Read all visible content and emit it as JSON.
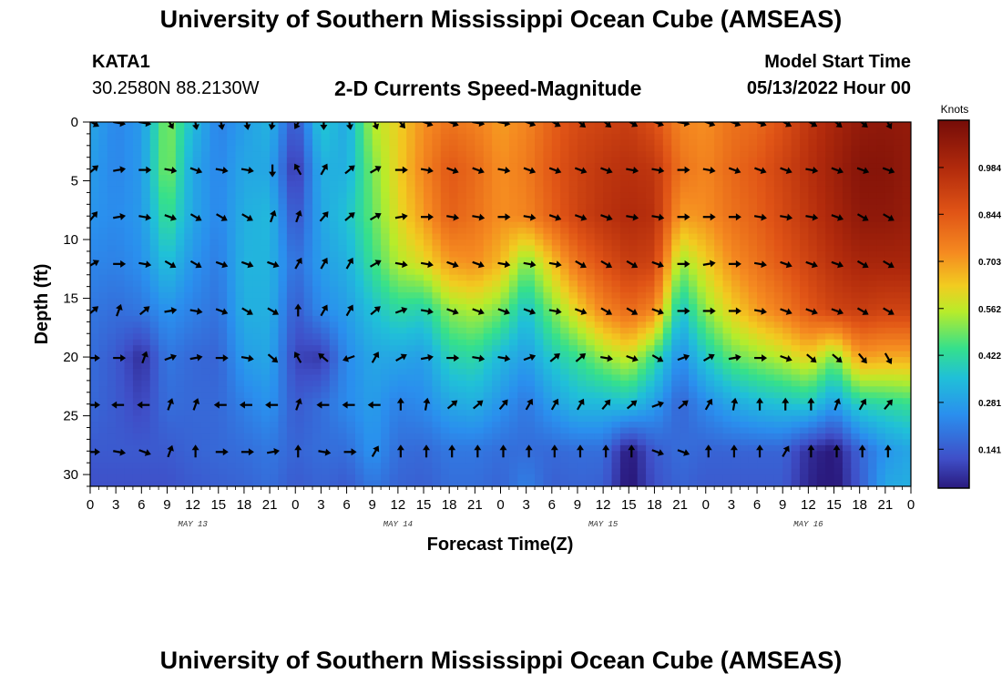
{
  "page": {
    "title_top": "University of Southern Mississippi Ocean Cube (AMSEAS)",
    "title_bottom": "University of Southern Mississippi Ocean Cube (AMSEAS)",
    "station_id": "KATA1",
    "station_coords": "30.2580N  88.2130W",
    "plot_title": "2-D Currents Speed-Magnitude",
    "model_start_label": "Model Start Time",
    "model_start_value": "05/13/2022 Hour 00"
  },
  "chart_data": {
    "type": "heatmap",
    "title": "2-D Currents Speed-Magnitude",
    "xlabel": "Forecast Time(Z)",
    "ylabel": "Depth (ft)",
    "x_tick_labels": [
      "0",
      "3",
      "6",
      "9",
      "12",
      "15",
      "18",
      "21",
      "0",
      "3",
      "6",
      "9",
      "12",
      "15",
      "18",
      "21",
      "0",
      "3",
      "6",
      "9",
      "12",
      "15",
      "18",
      "21",
      "0",
      "3",
      "6",
      "9",
      "12",
      "15",
      "18",
      "21",
      "0"
    ],
    "x_range_hours": [
      0,
      96
    ],
    "date_labels": [
      {
        "text": "MAY 13",
        "hour": 12
      },
      {
        "text": "MAY 14",
        "hour": 36
      },
      {
        "text": "MAY 15",
        "hour": 60
      },
      {
        "text": "MAY 16",
        "hour": 84
      }
    ],
    "y_ticks": [
      0,
      5,
      10,
      15,
      20,
      25,
      30
    ],
    "y_range_ft": [
      0,
      31
    ],
    "colorbar": {
      "unit": "Knots",
      "range": [
        0.03,
        1.12
      ],
      "labels": [
        "0.984",
        "0.844",
        "0.703",
        "0.562",
        "0.422",
        "0.281",
        "0.141"
      ],
      "label_values": [
        0.984,
        0.844,
        0.703,
        0.562,
        0.422,
        0.281,
        0.141
      ]
    },
    "depth_rows_ft": [
      0,
      4,
      8,
      12,
      16,
      20,
      24,
      28,
      31
    ],
    "hours": [
      0,
      3,
      6,
      9,
      12,
      15,
      18,
      21,
      24,
      27,
      30,
      33,
      36,
      39,
      42,
      45,
      48,
      51,
      54,
      57,
      60,
      63,
      66,
      69,
      72,
      75,
      78,
      81,
      84,
      87,
      90,
      93,
      96
    ],
    "speed_knots_grid": [
      [
        0.3,
        0.23,
        0.27,
        0.52,
        0.35,
        0.22,
        0.28,
        0.33,
        0.12,
        0.38,
        0.3,
        0.55,
        0.62,
        0.72,
        0.78,
        0.75,
        0.7,
        0.74,
        0.82,
        0.88,
        0.9,
        0.92,
        0.86,
        0.74,
        0.72,
        0.78,
        0.8,
        0.86,
        0.94,
        1.0,
        1.05,
        1.06,
        1.05
      ],
      [
        0.28,
        0.23,
        0.27,
        0.52,
        0.3,
        0.23,
        0.3,
        0.3,
        0.06,
        0.32,
        0.32,
        0.5,
        0.62,
        0.74,
        0.84,
        0.8,
        0.72,
        0.76,
        0.84,
        0.9,
        0.94,
        0.96,
        0.94,
        0.78,
        0.74,
        0.8,
        0.84,
        0.9,
        0.96,
        1.02,
        1.08,
        1.08,
        1.05
      ],
      [
        0.26,
        0.24,
        0.27,
        0.45,
        0.3,
        0.23,
        0.32,
        0.34,
        0.12,
        0.3,
        0.36,
        0.48,
        0.6,
        0.7,
        0.82,
        0.78,
        0.72,
        0.74,
        0.82,
        0.9,
        0.95,
        0.98,
        0.96,
        0.7,
        0.72,
        0.78,
        0.82,
        0.88,
        0.94,
        1.0,
        1.06,
        1.06,
        1.04
      ],
      [
        0.23,
        0.22,
        0.25,
        0.36,
        0.26,
        0.21,
        0.33,
        0.33,
        0.18,
        0.28,
        0.32,
        0.44,
        0.55,
        0.6,
        0.7,
        0.72,
        0.66,
        0.5,
        0.64,
        0.78,
        0.86,
        0.92,
        0.9,
        0.52,
        0.62,
        0.72,
        0.78,
        0.84,
        0.9,
        0.96,
        1.0,
        1.0,
        1.0
      ],
      [
        0.2,
        0.18,
        0.2,
        0.26,
        0.22,
        0.19,
        0.32,
        0.32,
        0.14,
        0.24,
        0.28,
        0.36,
        0.42,
        0.4,
        0.52,
        0.55,
        0.5,
        0.36,
        0.5,
        0.62,
        0.74,
        0.8,
        0.74,
        0.36,
        0.52,
        0.62,
        0.7,
        0.76,
        0.84,
        0.9,
        0.92,
        0.9,
        0.9
      ],
      [
        0.18,
        0.14,
        0.06,
        0.2,
        0.17,
        0.16,
        0.28,
        0.3,
        0.1,
        0.08,
        0.24,
        0.3,
        0.3,
        0.28,
        0.4,
        0.42,
        0.34,
        0.28,
        0.38,
        0.44,
        0.52,
        0.58,
        0.44,
        0.24,
        0.38,
        0.48,
        0.52,
        0.56,
        0.62,
        0.5,
        0.7,
        0.68,
        0.68
      ],
      [
        0.17,
        0.14,
        0.1,
        0.18,
        0.17,
        0.17,
        0.22,
        0.26,
        0.14,
        0.18,
        0.24,
        0.28,
        0.22,
        0.24,
        0.3,
        0.32,
        0.26,
        0.2,
        0.28,
        0.34,
        0.34,
        0.36,
        0.28,
        0.16,
        0.24,
        0.3,
        0.34,
        0.36,
        0.38,
        0.28,
        0.4,
        0.42,
        0.44
      ],
      [
        0.14,
        0.14,
        0.14,
        0.14,
        0.16,
        0.17,
        0.18,
        0.2,
        0.16,
        0.18,
        0.18,
        0.26,
        0.18,
        0.17,
        0.2,
        0.2,
        0.18,
        0.18,
        0.17,
        0.18,
        0.18,
        0.02,
        0.14,
        0.18,
        0.16,
        0.16,
        0.16,
        0.16,
        0.06,
        0.02,
        0.16,
        0.26,
        0.3
      ],
      [
        0.12,
        0.12,
        0.12,
        0.12,
        0.14,
        0.15,
        0.16,
        0.18,
        0.14,
        0.16,
        0.14,
        0.2,
        0.16,
        0.15,
        0.18,
        0.18,
        0.16,
        0.22,
        0.15,
        0.16,
        0.15,
        0.01,
        0.12,
        0.16,
        0.14,
        0.14,
        0.14,
        0.14,
        0.05,
        0.01,
        0.14,
        0.3,
        0.32
      ]
    ],
    "arrow_depths_ft": [
      0,
      4,
      8,
      12,
      16,
      20,
      24,
      28
    ],
    "arrow_hours": [
      0,
      3,
      6,
      9,
      12,
      15,
      18,
      21,
      24,
      27,
      30,
      33,
      36,
      39,
      42,
      45,
      48,
      51,
      54,
      57,
      60,
      63,
      66,
      69,
      72,
      75,
      78,
      81,
      84,
      87,
      90,
      93
    ],
    "arrow_directions_deg": [
      [
        30,
        10,
        10,
        60,
        80,
        80,
        80,
        100,
        120,
        90,
        80,
        70,
        50,
        20,
        20,
        10,
        10,
        20,
        30,
        40,
        40,
        30,
        20,
        10,
        20,
        20,
        20,
        30,
        30,
        40,
        40,
        60
      ],
      [
        -40,
        -10,
        0,
        10,
        20,
        10,
        10,
        90,
        -120,
        -60,
        -40,
        -30,
        0,
        10,
        20,
        20,
        10,
        20,
        20,
        20,
        20,
        10,
        10,
        0,
        10,
        20,
        20,
        20,
        10,
        20,
        20,
        20
      ],
      [
        -50,
        -10,
        10,
        20,
        30,
        30,
        30,
        -70,
        -70,
        -50,
        -40,
        -30,
        -10,
        0,
        10,
        10,
        0,
        10,
        20,
        20,
        20,
        10,
        10,
        0,
        0,
        0,
        10,
        10,
        10,
        20,
        30,
        30
      ],
      [
        -30,
        0,
        10,
        30,
        30,
        20,
        20,
        20,
        -60,
        -60,
        -60,
        -30,
        10,
        10,
        20,
        20,
        10,
        10,
        10,
        30,
        30,
        30,
        20,
        0,
        -10,
        0,
        10,
        20,
        20,
        20,
        30,
        30
      ],
      [
        -40,
        -70,
        -40,
        -10,
        10,
        20,
        30,
        30,
        -90,
        -60,
        -60,
        -40,
        -20,
        10,
        20,
        20,
        20,
        20,
        10,
        20,
        30,
        30,
        20,
        0,
        0,
        0,
        10,
        20,
        20,
        20,
        30,
        30
      ],
      [
        0,
        0,
        -70,
        -20,
        -10,
        0,
        10,
        40,
        -120,
        -140,
        160,
        -60,
        -30,
        -10,
        0,
        10,
        10,
        -20,
        -40,
        -40,
        10,
        20,
        30,
        -20,
        -30,
        -10,
        0,
        20,
        40,
        40,
        50,
        60
      ],
      [
        0,
        180,
        180,
        -70,
        -70,
        180,
        180,
        180,
        -70,
        180,
        180,
        180,
        -90,
        -80,
        -40,
        -40,
        -50,
        -60,
        -60,
        -60,
        -50,
        -40,
        -20,
        -40,
        -60,
        -80,
        -90,
        -90,
        -90,
        -70,
        -60,
        -50
      ],
      [
        0,
        10,
        20,
        -70,
        -90,
        0,
        0,
        -10,
        -90,
        10,
        0,
        -60,
        -90,
        -90,
        -90,
        -90,
        -90,
        -90,
        -90,
        -90,
        -90,
        -90,
        20,
        20,
        -90,
        -90,
        -90,
        -60,
        -90,
        -90,
        -90,
        -90
      ]
    ]
  }
}
